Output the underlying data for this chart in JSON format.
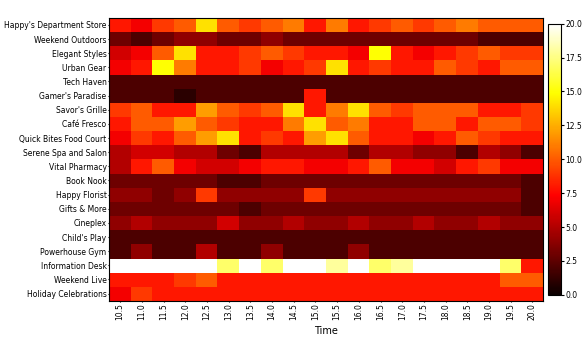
{
  "stores": [
    "Happy's Department Store",
    "Weekend Outdoors",
    "Elegant Styles",
    "Urban Gear",
    "Tech Haven",
    "Gamer's Paradise",
    "Savor's Grille",
    "Café Fresco",
    "Quick Bites Food Court",
    "Serene Spa and Salon",
    "Vital Pharmacy",
    "Book Nook",
    "Happy Florist",
    "Gifts & More",
    "Cineplex",
    "Child's Play",
    "Powerhouse Gym",
    "Information Desk",
    "Weekend Live",
    "Holiday Celebrations"
  ],
  "times": [
    "10.5",
    "11.0",
    "11.5",
    "12.0",
    "12.5",
    "13.0",
    "13.5",
    "14.0",
    "14.5",
    "15.0",
    "15.5",
    "16.0",
    "16.5",
    "17.0",
    "17.5",
    "18.0",
    "18.5",
    "19.0",
    "19.5",
    "20.0"
  ],
  "data": [
    [
      8,
      7,
      9,
      10,
      14,
      10,
      9,
      10,
      11,
      8,
      11,
      8,
      9,
      10,
      9,
      10,
      11,
      10,
      10,
      10
    ],
    [
      3,
      2,
      3,
      4,
      4,
      3,
      3,
      4,
      3,
      3,
      3,
      3,
      3,
      3,
      3,
      3,
      3,
      2,
      2,
      2
    ],
    [
      6,
      7,
      10,
      14,
      8,
      8,
      9,
      10,
      9,
      8,
      8,
      7,
      15,
      8,
      7,
      8,
      9,
      10,
      9,
      9
    ],
    [
      7,
      8,
      15,
      11,
      8,
      8,
      9,
      7,
      8,
      9,
      14,
      8,
      9,
      8,
      8,
      10,
      9,
      8,
      10,
      10
    ],
    [
      2,
      2,
      2,
      2,
      2,
      2,
      2,
      2,
      2,
      2,
      2,
      2,
      2,
      2,
      2,
      2,
      2,
      2,
      2,
      2
    ],
    [
      2,
      2,
      2,
      1,
      2,
      2,
      2,
      2,
      2,
      8,
      2,
      2,
      2,
      2,
      2,
      2,
      2,
      2,
      2,
      2
    ],
    [
      9,
      10,
      8,
      8,
      12,
      10,
      9,
      10,
      14,
      8,
      11,
      14,
      10,
      9,
      10,
      10,
      10,
      8,
      8,
      9
    ],
    [
      8,
      10,
      10,
      12,
      10,
      9,
      8,
      8,
      11,
      14,
      10,
      11,
      8,
      8,
      10,
      10,
      8,
      10,
      10,
      9
    ],
    [
      7,
      9,
      8,
      10,
      12,
      14,
      8,
      9,
      8,
      12,
      14,
      10,
      8,
      8,
      7,
      8,
      10,
      9,
      8,
      8
    ],
    [
      5,
      6,
      6,
      5,
      5,
      3,
      2,
      5,
      5,
      5,
      5,
      3,
      5,
      5,
      4,
      4,
      2,
      5,
      4,
      2
    ],
    [
      5,
      8,
      10,
      7,
      6,
      6,
      7,
      8,
      8,
      7,
      7,
      8,
      10,
      7,
      7,
      6,
      8,
      9,
      7,
      7
    ],
    [
      3,
      3,
      3,
      3,
      3,
      2,
      2,
      3,
      3,
      3,
      3,
      3,
      3,
      3,
      3,
      3,
      3,
      3,
      3,
      2
    ],
    [
      4,
      4,
      3,
      4,
      9,
      4,
      4,
      4,
      4,
      9,
      4,
      4,
      4,
      4,
      4,
      4,
      4,
      4,
      4,
      2
    ],
    [
      3,
      3,
      3,
      3,
      3,
      3,
      2,
      3,
      3,
      3,
      3,
      3,
      3,
      3,
      3,
      3,
      3,
      3,
      3,
      2
    ],
    [
      4,
      5,
      4,
      4,
      4,
      6,
      4,
      4,
      5,
      4,
      4,
      5,
      4,
      4,
      5,
      4,
      4,
      5,
      4,
      4
    ],
    [
      2,
      2,
      2,
      2,
      2,
      2,
      2,
      2,
      2,
      2,
      2,
      2,
      2,
      2,
      2,
      2,
      2,
      2,
      2,
      2
    ],
    [
      2,
      4,
      2,
      2,
      5,
      2,
      2,
      4,
      2,
      2,
      2,
      4,
      2,
      2,
      2,
      2,
      2,
      2,
      2,
      2
    ],
    [
      20,
      20,
      20,
      20,
      20,
      17,
      20,
      17,
      20,
      20,
      18,
      20,
      17,
      18,
      20,
      20,
      20,
      20,
      17,
      8
    ],
    [
      8,
      8,
      8,
      9,
      10,
      8,
      8,
      8,
      8,
      8,
      8,
      8,
      8,
      8,
      8,
      8,
      8,
      8,
      10,
      10
    ],
    [
      7,
      9,
      8,
      8,
      8,
      8,
      8,
      8,
      8,
      8,
      8,
      8,
      8,
      8,
      8,
      8,
      8,
      8,
      8,
      8
    ]
  ],
  "vmin": 0.0,
  "vmax": 20.0,
  "colormap": "hot",
  "xlabel": "Time",
  "store_fontsize": 5.5,
  "xlabel_fontsize": 7,
  "tick_fontsize": 5.5,
  "cbar_fontsize": 5.5,
  "colorbar_ticks": [
    0.0,
    2.5,
    5.0,
    7.5,
    10.0,
    12.5,
    15.0,
    17.5,
    20.0
  ],
  "colorbar_ticklabels": [
    "0.0",
    "2.5",
    "5.0",
    "7.5",
    "10.0",
    "12.5",
    "15.0",
    "17.5",
    "20.0"
  ],
  "figsize": [
    5.86,
    3.4
  ],
  "dpi": 100
}
